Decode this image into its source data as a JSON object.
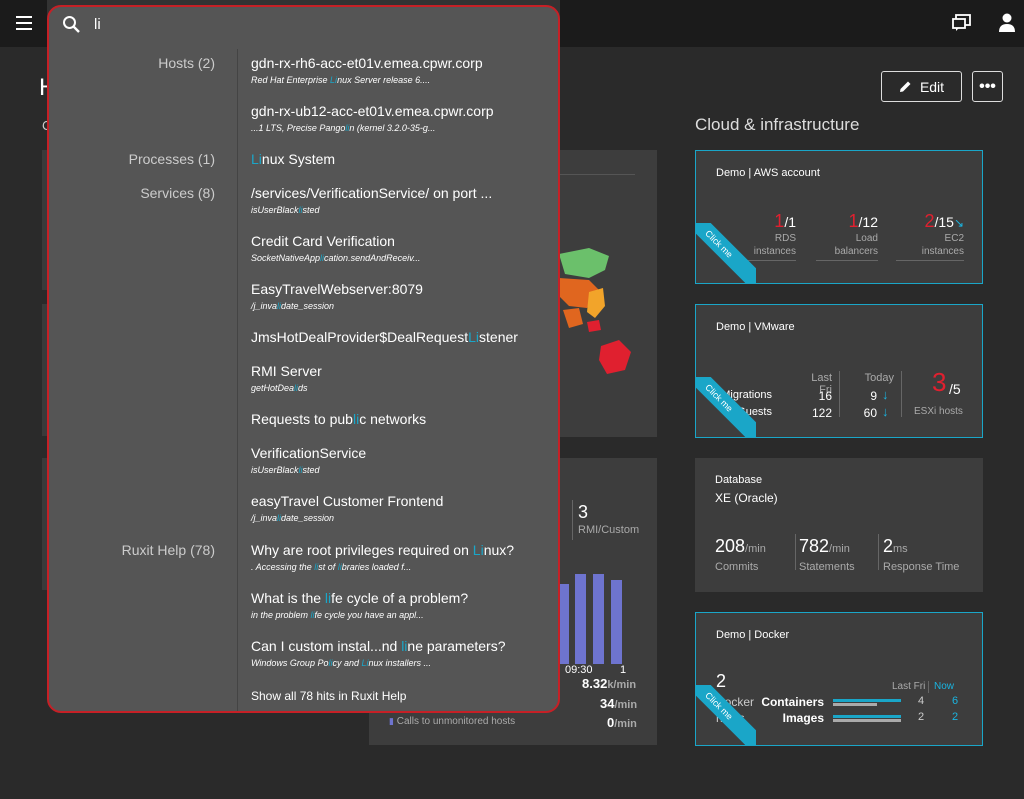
{
  "page": {
    "title": "H",
    "sub": "C"
  },
  "header": {
    "edit_label": "Edit",
    "more_label": "•••"
  },
  "cloud": {
    "section_title": "Cloud & infrastructure",
    "aws": {
      "title": "Demo | AWS account",
      "ribbon": "Click me",
      "rds": {
        "num": "1",
        "den": "/1",
        "label1": "RDS",
        "label2": "instances"
      },
      "lb": {
        "num": "1",
        "den": "/12",
        "label1": "Load",
        "label2": "balancers"
      },
      "ec2": {
        "num": "2",
        "den": "/15",
        "label1": "EC2",
        "label2": "instances"
      }
    },
    "vmware": {
      "title": "Demo | VMware",
      "ribbon": "Click me",
      "col_last": "Last Fri",
      "col_today": "Today",
      "migrations_label": "Migrations",
      "guests_label": "Guests",
      "migrations_last": "16",
      "migrations_today": "9",
      "guests_last": "122",
      "guests_today": "60",
      "esxi_num": "3",
      "esxi_den": "/5",
      "esxi_label": "ESXi hosts"
    },
    "database": {
      "title": "Database",
      "sub": "XE (Oracle)",
      "commits": "208",
      "commits_unit": "/min",
      "commits_label": "Commits",
      "statements": "782",
      "statements_unit": "/min",
      "statements_label": "Statements",
      "resp": "2",
      "resp_unit": "ms",
      "resp_label": "Response Time"
    },
    "docker": {
      "title": "Demo | Docker",
      "ribbon": "Click me",
      "hosts_num": "2",
      "hosts_label1": "Docker",
      "hosts_label2": "hosts",
      "col_last": "Last Fri",
      "col_now": "Now",
      "containers_label": "Containers",
      "images_label": "Images",
      "containers_last": "4",
      "containers_now": "6",
      "images_last": "2",
      "images_now": "2"
    }
  },
  "mid": {
    "services_count": "3",
    "services_label": "RMI/Custom",
    "services_label_cut": "g",
    "time_a": "09:30",
    "time_b": "1",
    "rate1": "8.32",
    "rate1_unit": "k/min",
    "rate2": "34",
    "rate2_unit": "/min",
    "unmon_label": "Calls to unmonitored hosts",
    "rate3": "0",
    "rate3_unit": "/min"
  },
  "search": {
    "query": "li",
    "show_all": "Show all 78 hits in Ruxit Help",
    "categories": [
      {
        "label": "Hosts (2)"
      },
      {
        "label": "Processes (1)"
      },
      {
        "label": "Services (8)"
      },
      {
        "label": "Ruxit Help (78)"
      }
    ],
    "results": [
      {
        "t1": "gdn-rx-rh6-acc-et01v.emea.cpwr.corp",
        "d1": "Red Hat Enterprise ",
        "dh": "Li",
        "d2": "nux Server release 6...."
      },
      {
        "t1": "gdn-rx-ub12-acc-et01v.emea.cpwr.corp",
        "d1": "...1 LTS, Precise Pango",
        "dh": "li",
        "d2": "n (kernel 3.2.0-35-g..."
      },
      {
        "th": "Li",
        "t2": "nux System"
      },
      {
        "t1": "/services/VerificationService/ on port ...",
        "d1": "isUserBlack",
        "dh": "li",
        "d2": "sted"
      },
      {
        "t1": "Credit Card Verification",
        "d1": "SocketNativeApp",
        "dh": "li",
        "d2": "cation.sendAndReceiv..."
      },
      {
        "t1": "EasyTravelWebserver:8079",
        "d1": "/j_inva",
        "dh": "li",
        "d2": "date_session"
      },
      {
        "t1": "JmsHotDealProvider$DealRequest",
        "th": "Li",
        "t2": "stener"
      },
      {
        "t1": "RMI Server",
        "d1": "getHotDea",
        "dh": "li",
        "d2": "ds"
      },
      {
        "t1": "Requests to pub",
        "th": "li",
        "t2": "c networks"
      },
      {
        "t1": "VerificationService",
        "d1": "isUserBlack",
        "dh": "li",
        "d2": "sted"
      },
      {
        "t1": "easyTravel Customer Frontend",
        "d1": "/j_inva",
        "dh": "li",
        "d2": "date_session"
      },
      {
        "t1": "Why are root privileges required on ",
        "th": "Li",
        "t2": "nux?",
        "d1": ". Accessing the ",
        "dh": "li",
        "d2": "st of ",
        "dh2": "li",
        "d3": "braries loaded f..."
      },
      {
        "t1": "What is the ",
        "th": "li",
        "t2": "fe cycle of a problem?",
        "d1": "in the problem ",
        "dh": "li",
        "d2": "fe cycle you have an appl..."
      },
      {
        "t1": "Can I custom instal...nd ",
        "th": "li",
        "t2": "ne parameters?",
        "d1": "Windows Group Po",
        "dh": "li",
        "d2": "cy and ",
        "dh2": "Li",
        "d3": "nux installers ..."
      }
    ]
  }
}
